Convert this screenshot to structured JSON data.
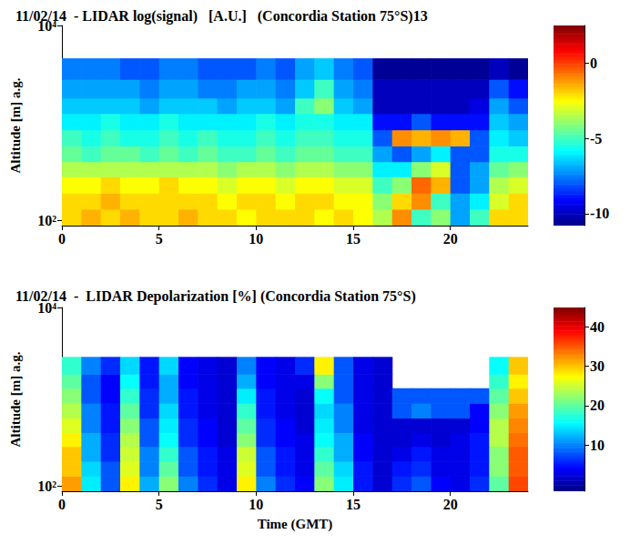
{
  "chart_data": [
    {
      "type": "heatmap",
      "title": "11/02/14  - LIDAR log(signal)   [A.U.]   (Concordia Station 75°S)13",
      "ylabel": "Altitude [m] a.g.",
      "log": "y",
      "xlim": [
        0,
        24
      ],
      "xticks": [
        0,
        5,
        10,
        15,
        20
      ],
      "ylim": [
        88,
        10000
      ],
      "yticks": [
        {
          "value": 100,
          "label": "10²"
        },
        {
          "value": 10000,
          "label": "10⁴"
        }
      ],
      "x": [
        0,
        1,
        2,
        3,
        4,
        5,
        6,
        7,
        8,
        9,
        10,
        11,
        12,
        13,
        14,
        15,
        16,
        17,
        18,
        19,
        20,
        21,
        22,
        23,
        24
      ],
      "y": [
        88,
        130,
        190,
        280,
        400,
        580,
        850,
        1250,
        1800,
        2800,
        4600
      ],
      "values": [
        [
          -2,
          -1.5,
          -2,
          -1.5,
          -2,
          -2,
          -1.5,
          -2,
          -2,
          -2.5,
          -2,
          -2,
          -2,
          -2.5,
          -2,
          -2.5,
          -3.5,
          -1,
          -5,
          -4,
          -7,
          -5,
          -2,
          -2
        ],
        [
          -2,
          -2,
          -1.5,
          -2,
          -2,
          -2,
          -2,
          -2,
          -2.5,
          -2,
          -2,
          -2.5,
          -2,
          -2,
          -2.5,
          -2.5,
          -4,
          -2,
          -1,
          -5,
          -7,
          -6,
          -3,
          -2
        ],
        [
          -2.5,
          -2.5,
          -2,
          -2.5,
          -2.5,
          -2,
          -2.5,
          -2.5,
          -3,
          -2.5,
          -2.5,
          -3,
          -2.5,
          -2.5,
          -3,
          -3,
          -5,
          -4,
          -0.5,
          -1.5,
          -8,
          -7,
          -3.5,
          -3
        ],
        [
          -3.5,
          -3.5,
          -3.5,
          -3.5,
          -3.5,
          -3.5,
          -3.5,
          -3.5,
          -4,
          -3.5,
          -3.5,
          -4,
          -3.5,
          -3.5,
          -4,
          -4,
          -6,
          -6,
          -4,
          -3,
          -8,
          -7,
          -4.5,
          -4
        ],
        [
          -4.5,
          -5,
          -4.5,
          -4.5,
          -5,
          -4.5,
          -5,
          -4.5,
          -5,
          -5,
          -4.5,
          -5,
          -4.5,
          -4.5,
          -5,
          -5,
          -7,
          -8,
          -7,
          -6,
          -8,
          -8,
          -5.5,
          -5.5
        ],
        [
          -5,
          -5.5,
          -5,
          -5.5,
          -5.5,
          -5,
          -5.5,
          -5,
          -5.5,
          -5.5,
          -5,
          -5.5,
          -5,
          -5,
          -5.5,
          -5.5,
          -8,
          -1,
          -1.5,
          -1,
          -1.5,
          -8,
          -6,
          -6.5
        ],
        [
          -6,
          -6,
          -5.5,
          -6,
          -6,
          -5.5,
          -6,
          -6,
          -6,
          -6,
          -5.5,
          -6,
          -5.5,
          -5.5,
          -6,
          -6,
          -9,
          -9,
          -8,
          -9,
          -9,
          -9,
          -6.5,
          -7
        ],
        [
          -6.5,
          -6.5,
          -6.5,
          -6.5,
          -7,
          -6.5,
          -6.5,
          -6.5,
          -7,
          -6.5,
          -6.5,
          -7,
          -5,
          -4,
          -6.5,
          -7,
          -10,
          -10,
          -10,
          -10,
          -10,
          -9.5,
          -7,
          -8
        ],
        [
          -7,
          -7,
          -7,
          -7,
          -7.5,
          -7,
          -7,
          -7.5,
          -7.5,
          -7,
          -7,
          -7.5,
          -6.5,
          -5,
          -7,
          -7.5,
          -10,
          -10,
          -10,
          -10,
          -10,
          -10,
          -8,
          -9
        ],
        [
          -7.5,
          -7.5,
          -7.5,
          -8,
          -8,
          -7.5,
          -7.5,
          -8,
          -8,
          -8,
          -7.5,
          -8,
          -7,
          -6.5,
          -7.5,
          -8,
          -10.5,
          -10.5,
          -10.5,
          -10.5,
          -10.5,
          -10.5,
          -10,
          -10.5
        ]
      ],
      "colorbar": {
        "range": [
          -10.8,
          2.5
        ],
        "ticks": [
          -10,
          -5,
          0
        ]
      }
    },
    {
      "type": "heatmap",
      "title": "11/02/14  -  LIDAR Depolarization [%] (Concordia Station 75°S)",
      "xlabel": "Time (GMT)",
      "ylabel": "Altitude [m] a.g.",
      "log": "y",
      "xlim": [
        0,
        24
      ],
      "xticks": [
        0,
        5,
        10,
        15,
        20
      ],
      "ylim": [
        88,
        10000
      ],
      "yticks": [
        {
          "value": 100,
          "label": "10²"
        },
        {
          "value": 10000,
          "label": "10⁴"
        }
      ],
      "x": [
        0,
        1,
        2,
        3,
        4,
        5,
        6,
        7,
        8,
        9,
        10,
        11,
        12,
        13,
        14,
        15,
        16,
        17,
        18,
        19,
        20,
        21,
        22,
        23,
        24
      ],
      "y": [
        88,
        130,
        190,
        280,
        400,
        580,
        850,
        1250,
        1800,
        2800
      ],
      "values": [
        [
          32,
          15,
          8,
          28,
          12,
          22,
          10,
          6,
          3,
          28,
          10,
          6,
          4,
          22,
          15,
          5,
          2,
          6,
          8,
          4,
          3,
          6,
          20,
          36
        ],
        [
          30,
          14,
          8,
          26,
          10,
          20,
          8,
          5,
          3,
          26,
          8,
          5,
          3,
          20,
          14,
          5,
          2,
          5,
          6,
          3,
          3,
          5,
          22,
          35
        ],
        [
          30,
          12,
          6,
          25,
          10,
          18,
          8,
          5,
          3,
          25,
          8,
          5,
          3,
          18,
          12,
          4,
          2,
          3,
          5,
          3,
          3,
          5,
          22,
          35
        ],
        [
          28,
          12,
          6,
          24,
          8,
          16,
          6,
          4,
          2,
          22,
          6,
          4,
          3,
          16,
          12,
          4,
          2,
          2,
          3,
          2,
          3,
          5,
          24,
          34
        ],
        [
          26,
          10,
          5,
          22,
          8,
          15,
          6,
          4,
          2,
          20,
          6,
          4,
          2,
          15,
          10,
          3,
          2,
          2,
          2,
          2,
          2,
          4,
          24,
          33
        ],
        [
          24,
          10,
          5,
          20,
          6,
          14,
          5,
          3,
          2,
          18,
          5,
          3,
          2,
          14,
          10,
          3,
          2,
          8,
          10,
          8,
          8,
          4,
          22,
          32
        ],
        [
          22,
          8,
          4,
          18,
          6,
          12,
          5,
          3,
          2,
          15,
          5,
          3,
          2,
          16,
          8,
          3,
          2,
          8,
          8,
          8,
          8,
          8,
          20,
          30
        ],
        [
          20,
          8,
          4,
          16,
          5,
          12,
          4,
          3,
          2,
          12,
          4,
          3,
          3,
          22,
          8,
          3,
          2,
          null,
          null,
          null,
          null,
          null,
          18,
          28
        ],
        [
          18,
          10,
          6,
          14,
          5,
          14,
          4,
          3,
          2,
          10,
          4,
          3,
          6,
          28,
          8,
          3,
          2,
          null,
          null,
          null,
          null,
          null,
          16,
          30
        ]
      ],
      "colorbar": {
        "range": [
          -1.8,
          45
        ],
        "ticks": [
          10,
          20,
          30,
          40
        ]
      }
    }
  ]
}
